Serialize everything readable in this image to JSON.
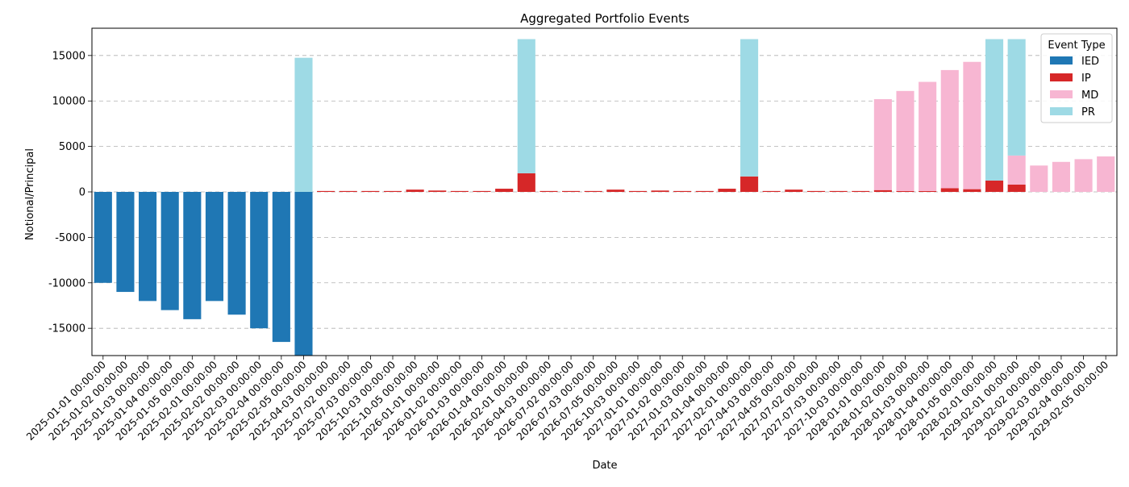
{
  "chart_data": {
    "type": "bar",
    "stacked": true,
    "title": "Aggregated Portfolio Events",
    "xlabel": "Date",
    "ylabel": "Notional/Principal",
    "ylim": [
      -18000,
      18000
    ],
    "yticks": [
      -15000,
      -10000,
      -5000,
      0,
      5000,
      10000,
      15000
    ],
    "grid": "y-dashed",
    "legend": {
      "title": "Event Type",
      "placement": "top-right"
    },
    "categories": [
      "2025-01-01 00:00:00",
      "2025-01-02 00:00:00",
      "2025-01-03 00:00:00",
      "2025-01-04 00:00:00",
      "2025-01-05 00:00:00",
      "2025-02-01 00:00:00",
      "2025-02-02 00:00:00",
      "2025-02-03 00:00:00",
      "2025-02-04 00:00:00",
      "2025-02-05 00:00:00",
      "2025-04-03 00:00:00",
      "2025-07-02 00:00:00",
      "2025-07-03 00:00:00",
      "2025-10-03 00:00:00",
      "2025-10-05 00:00:00",
      "2026-01-01 00:00:00",
      "2026-01-02 00:00:00",
      "2026-01-03 00:00:00",
      "2026-01-04 00:00:00",
      "2026-02-01 00:00:00",
      "2026-04-03 00:00:00",
      "2026-07-02 00:00:00",
      "2026-07-03 00:00:00",
      "2026-07-05 00:00:00",
      "2026-10-03 00:00:00",
      "2027-01-01 00:00:00",
      "2027-01-02 00:00:00",
      "2027-01-03 00:00:00",
      "2027-01-04 00:00:00",
      "2027-02-01 00:00:00",
      "2027-04-03 00:00:00",
      "2027-04-05 00:00:00",
      "2027-07-02 00:00:00",
      "2027-07-03 00:00:00",
      "2027-10-03 00:00:00",
      "2028-01-01 00:00:00",
      "2028-01-02 00:00:00",
      "2028-01-03 00:00:00",
      "2028-01-04 00:00:00",
      "2028-01-05 00:00:00",
      "2028-02-01 00:00:00",
      "2029-02-01 00:00:00",
      "2029-02-02 00:00:00",
      "2029-02-03 00:00:00",
      "2029-02-04 00:00:00",
      "2029-02-05 00:00:00"
    ],
    "series": [
      {
        "name": "IED",
        "color": "#1f77b4",
        "values": [
          -10000,
          -11000,
          -12000,
          -13000,
          -14000,
          -12000,
          -13500,
          -15000,
          -16500,
          -18000,
          0,
          0,
          0,
          0,
          0,
          0,
          0,
          0,
          0,
          0,
          0,
          0,
          0,
          0,
          0,
          0,
          0,
          0,
          0,
          0,
          0,
          0,
          0,
          0,
          0,
          0,
          0,
          0,
          0,
          0,
          0,
          0,
          0,
          0,
          0,
          0
        ]
      },
      {
        "name": "IP",
        "color": "#d62728",
        "values": [
          0,
          0,
          0,
          0,
          0,
          0,
          0,
          0,
          0,
          0,
          100,
          100,
          100,
          100,
          250,
          150,
          100,
          100,
          350,
          2050,
          100,
          100,
          100,
          250,
          100,
          150,
          100,
          100,
          350,
          1700,
          100,
          250,
          100,
          100,
          100,
          200,
          100,
          100,
          400,
          300,
          1250,
          800,
          0,
          0,
          0,
          0
        ]
      },
      {
        "name": "MD",
        "color": "#f7b6d2",
        "values": [
          0,
          0,
          0,
          0,
          0,
          0,
          0,
          0,
          0,
          0,
          0,
          0,
          0,
          0,
          0,
          0,
          0,
          0,
          0,
          0,
          0,
          0,
          0,
          0,
          0,
          0,
          0,
          0,
          0,
          0,
          0,
          0,
          0,
          0,
          0,
          10000,
          11000,
          12000,
          13000,
          14000,
          0,
          3200,
          2900,
          3300,
          3600,
          3900
        ]
      },
      {
        "name": "PR",
        "color": "#9edae5",
        "values": [
          0,
          0,
          0,
          0,
          0,
          0,
          0,
          0,
          0,
          14750,
          0,
          0,
          0,
          0,
          0,
          0,
          0,
          0,
          0,
          14750,
          0,
          0,
          0,
          0,
          0,
          0,
          0,
          0,
          0,
          15100,
          0,
          0,
          0,
          0,
          0,
          0,
          0,
          0,
          0,
          0,
          15550,
          12800,
          0,
          0,
          0,
          0
        ]
      }
    ]
  }
}
